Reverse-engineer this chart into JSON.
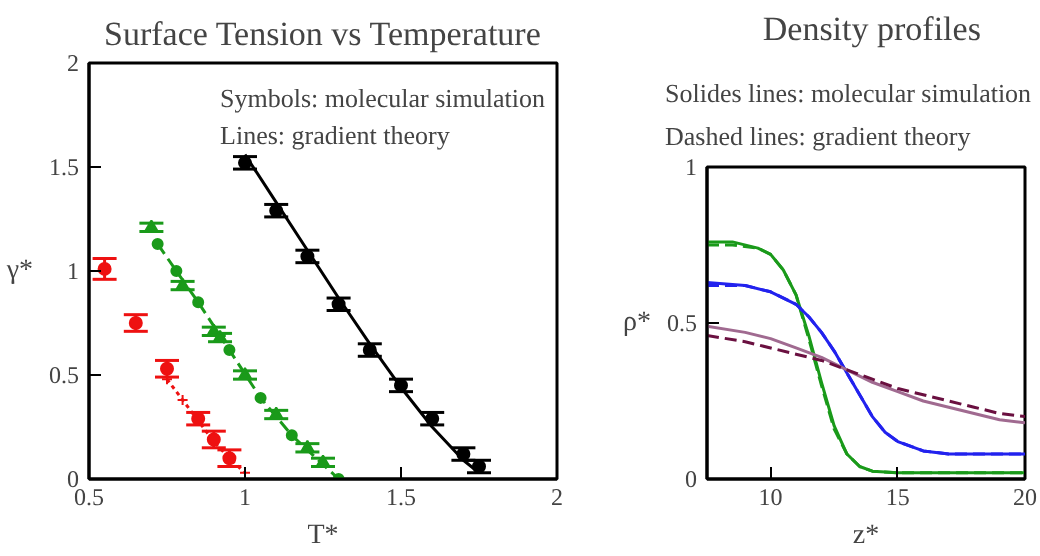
{
  "chart_data": [
    {
      "type": "scatter",
      "title": "Surface Tension vs Temperature",
      "xlabel": "T*",
      "ylabel": "γ*",
      "annotations": [
        "Symbols: molecular simulation",
        "Lines: gradient theory"
      ],
      "xlim": [
        0.5,
        2
      ],
      "ylim": [
        0,
        2
      ],
      "xticks": [
        0.5,
        1,
        1.5,
        2
      ],
      "yticks": [
        0,
        0.5,
        1,
        1.5,
        2
      ],
      "series": [
        {
          "type": "line",
          "color": "#000000",
          "line_style": "solid",
          "marker": "none",
          "x": [
            1.0,
            1.1,
            1.2,
            1.3,
            1.4,
            1.5,
            1.6,
            1.7,
            1.75
          ],
          "values": [
            1.56,
            1.33,
            1.1,
            0.87,
            0.65,
            0.44,
            0.25,
            0.09,
            0.03
          ]
        },
        {
          "type": "scatter",
          "color": "#000000",
          "marker": "circle",
          "x": [
            1.0,
            1.1,
            1.2,
            1.3,
            1.4,
            1.5,
            1.6,
            1.7,
            1.75
          ],
          "values": [
            1.52,
            1.29,
            1.07,
            0.84,
            0.62,
            0.45,
            0.29,
            0.12,
            0.06
          ],
          "errors": [
            0.03,
            0.03,
            0.03,
            0.03,
            0.03,
            0.03,
            0.03,
            0.03,
            0.03
          ]
        },
        {
          "type": "line",
          "color": "#1a9a1a",
          "line_style": "dashed",
          "marker": "circle",
          "x": [
            0.72,
            0.78,
            0.85,
            0.95,
            1.05,
            1.15,
            1.3
          ],
          "values": [
            1.13,
            1.0,
            0.85,
            0.62,
            0.39,
            0.21,
            0.0
          ]
        },
        {
          "type": "scatter",
          "color": "#1a9a1a",
          "marker": "triangle",
          "x": [
            0.7,
            0.8,
            0.9,
            0.92,
            1.0,
            1.1,
            1.2,
            1.25
          ],
          "values": [
            1.21,
            0.93,
            0.71,
            0.68,
            0.5,
            0.31,
            0.15,
            0.08
          ],
          "errors": [
            0.02,
            0.02,
            0.02,
            0.02,
            0.02,
            0.02,
            0.02,
            0.02
          ]
        },
        {
          "type": "line",
          "color": "#ee1111",
          "line_style": "dotted",
          "marker": "cross",
          "x": [
            0.75,
            0.8,
            0.85,
            0.9,
            0.95,
            1.0
          ],
          "values": [
            0.48,
            0.38,
            0.28,
            0.18,
            0.1,
            0.03
          ]
        },
        {
          "type": "scatter",
          "color": "#ee1111",
          "marker": "circle",
          "x": [
            0.55,
            0.65,
            0.75,
            0.85,
            0.9,
            0.95
          ],
          "values": [
            1.01,
            0.75,
            0.53,
            0.29,
            0.19,
            0.1
          ],
          "errors": [
            0.05,
            0.04,
            0.04,
            0.03,
            0.04,
            0.04
          ]
        }
      ]
    },
    {
      "type": "line",
      "title": "Density profiles",
      "xlabel": "z*",
      "ylabel": "ρ*",
      "annotations": [
        "Solides lines: molecular simulation",
        "Dashed lines: gradient theory"
      ],
      "xlim": [
        7.5,
        20
      ],
      "ylim": [
        0,
        1
      ],
      "xticks": [
        10,
        15,
        20
      ],
      "yticks": [
        0,
        0.5,
        1
      ],
      "series": [
        {
          "color": "#1a9a1a",
          "line_style": "solid",
          "x": [
            7.5,
            8.5,
            9.5,
            10,
            10.5,
            11,
            11.5,
            12,
            12.5,
            13,
            13.5,
            14,
            15,
            17,
            20
          ],
          "values": [
            0.76,
            0.76,
            0.74,
            0.72,
            0.67,
            0.59,
            0.46,
            0.31,
            0.17,
            0.08,
            0.04,
            0.025,
            0.02,
            0.02,
            0.02
          ]
        },
        {
          "color": "#1a9a1a",
          "line_style": "dashed",
          "x": [
            7.5,
            8.5,
            9.5,
            10,
            10.5,
            11,
            11.5,
            12,
            12.5,
            13,
            13.5,
            14,
            15,
            17,
            20
          ],
          "values": [
            0.75,
            0.75,
            0.74,
            0.72,
            0.67,
            0.59,
            0.45,
            0.3,
            0.16,
            0.08,
            0.04,
            0.025,
            0.02,
            0.02,
            0.02
          ]
        },
        {
          "color": "#2222ee",
          "line_style": "solid",
          "x": [
            7.5,
            9,
            10,
            11,
            11.5,
            12,
            12.5,
            13,
            13.5,
            14,
            14.5,
            15,
            16,
            17,
            18,
            20
          ],
          "values": [
            0.63,
            0.62,
            0.6,
            0.56,
            0.52,
            0.47,
            0.41,
            0.34,
            0.27,
            0.2,
            0.15,
            0.12,
            0.09,
            0.08,
            0.08,
            0.08
          ]
        },
        {
          "color": "#2222ee",
          "line_style": "dashed",
          "x": [
            7.5,
            9,
            10,
            11,
            11.5,
            12,
            12.5,
            13,
            13.5,
            14,
            14.5,
            15,
            16,
            17,
            18,
            20
          ],
          "values": [
            0.62,
            0.62,
            0.6,
            0.56,
            0.52,
            0.47,
            0.41,
            0.34,
            0.27,
            0.2,
            0.15,
            0.12,
            0.09,
            0.08,
            0.08,
            0.08
          ]
        },
        {
          "color": "#a06a90",
          "line_style": "solid",
          "x": [
            7.5,
            9,
            10,
            11,
            12,
            13,
            14,
            15,
            16,
            17,
            18,
            19,
            20
          ],
          "values": [
            0.49,
            0.47,
            0.45,
            0.42,
            0.39,
            0.35,
            0.31,
            0.28,
            0.25,
            0.23,
            0.21,
            0.19,
            0.18
          ]
        },
        {
          "color": "#6a1040",
          "line_style": "dashed",
          "x": [
            7.5,
            9,
            10,
            11,
            12,
            13,
            14,
            15,
            16,
            17,
            18,
            19,
            20
          ],
          "values": [
            0.46,
            0.44,
            0.42,
            0.4,
            0.38,
            0.35,
            0.32,
            0.29,
            0.27,
            0.25,
            0.23,
            0.21,
            0.2
          ]
        }
      ]
    }
  ]
}
